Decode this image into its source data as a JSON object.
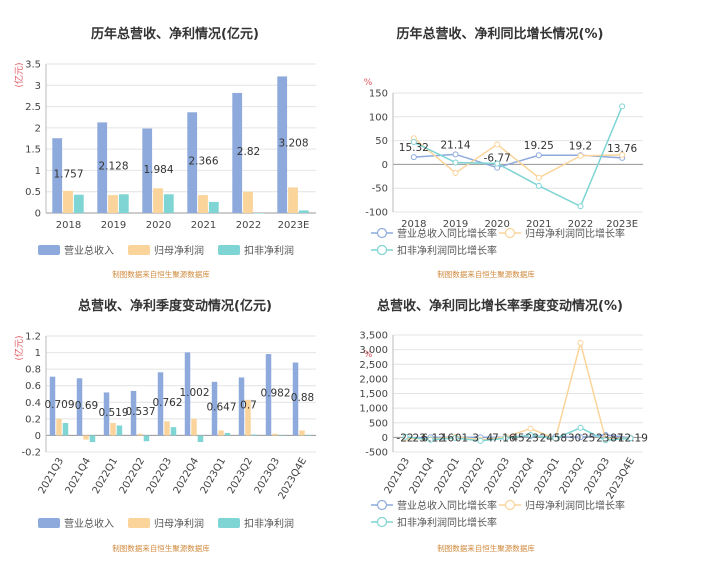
{
  "charts": [
    {
      "type": "bar",
      "title": "历年总营收、净利情况(亿元)",
      "unit_label": "(亿元)",
      "categories": [
        "2018",
        "2019",
        "2020",
        "2021",
        "2022",
        "2023E"
      ],
      "ylim": [
        0,
        3.5
      ],
      "yticks": [
        "0",
        "0.5",
        "1",
        "1.5",
        "2",
        "2.5",
        "3",
        "3.5"
      ],
      "series": [
        {
          "name": "营业总收入",
          "color": "#8eaadc",
          "values": [
            1.757,
            2.128,
            1.984,
            2.366,
            2.82,
            3.208
          ]
        },
        {
          "name": "归母净利润",
          "color": "#fad49a",
          "values": [
            0.52,
            0.42,
            0.58,
            0.42,
            0.5,
            0.6
          ]
        },
        {
          "name": "扣非净利润",
          "color": "#7fd4d4",
          "values": [
            0.43,
            0.44,
            0.44,
            0.26,
            0,
            0.06
          ]
        }
      ],
      "data_labels": [
        "1.757",
        "2.128",
        "1.984",
        "2.366",
        "2.82",
        "3.208"
      ],
      "source": "制图数据来自恒生聚源数据库"
    },
    {
      "type": "line",
      "title": "历年总营收、净利同比增长情况(%)",
      "unit_label": "%",
      "categories": [
        "2018",
        "2019",
        "2020",
        "2021",
        "2022",
        "2023E"
      ],
      "ylim": [
        -100,
        150
      ],
      "yticks": [
        "-100",
        "-50",
        "0",
        "50",
        "100",
        "150"
      ],
      "series": [
        {
          "name": "营业总收入同比增长率",
          "color": "#8eaadc",
          "values": [
            15.32,
            21.14,
            -6.77,
            19.25,
            19.2,
            13.76
          ]
        },
        {
          "name": "归母净利润同比增长率",
          "color": "#fad49a",
          "values": [
            55,
            -18,
            42,
            -28,
            18,
            20
          ]
        },
        {
          "name": "扣非净利润同比增长率",
          "color": "#7fd4d4",
          "values": [
            47,
            4,
            2,
            -45,
            -88,
            122
          ]
        }
      ],
      "data_labels": [
        "15.32",
        "21.14",
        "-6.77",
        "19.25",
        "19.2",
        "13.76"
      ],
      "source": "制图数据来自恒生聚源数据库"
    },
    {
      "type": "bar",
      "title": "总营收、净利季度变动情况(亿元)",
      "unit_label": "(亿元)",
      "categories": [
        "2021Q3",
        "2021Q4",
        "2022Q1",
        "2022Q2",
        "2022Q3",
        "2022Q4",
        "2023Q1",
        "2023Q2",
        "2023Q3",
        "2023Q4E"
      ],
      "ylim": [
        -0.2,
        1.2
      ],
      "yticks": [
        "-0.2",
        "0",
        "0.2",
        "0.4",
        "0.6",
        "0.8",
        "1",
        "1.2"
      ],
      "series": [
        {
          "name": "营业总收入",
          "color": "#8eaadc",
          "values": [
            0.709,
            0.69,
            0.519,
            0.537,
            0.762,
            1.002,
            0.647,
            0.7,
            0.982,
            0.88
          ]
        },
        {
          "name": "归母净利润",
          "color": "#fad49a",
          "values": [
            0.2,
            -0.05,
            0.15,
            0.02,
            0.17,
            0.2,
            0.06,
            0.43,
            0.02,
            0.06
          ]
        },
        {
          "name": "扣非净利润",
          "color": "#7fd4d4",
          "values": [
            0.15,
            -0.08,
            0.12,
            -0.07,
            0.1,
            -0.08,
            0.03,
            0.01,
            0.0,
            0.0
          ]
        }
      ],
      "data_labels": [
        "0.709",
        "0.69",
        "0.519",
        "0.537",
        "0.762",
        "1.002",
        "0.647",
        "0.7",
        "0.982",
        "0.88"
      ],
      "source": "制图数据来自恒生聚源数据库"
    },
    {
      "type": "line",
      "title": "总营收、净利同比增长率季度变动情况(%)",
      "unit_label": "%",
      "categories": [
        "2021Q3",
        "2021Q4",
        "2022Q1",
        "2022Q2",
        "2022Q3",
        "2022Q4",
        "2023Q1",
        "2023Q2",
        "2023Q3",
        "2023Q4E"
      ],
      "ylim": [
        -500,
        3500
      ],
      "yticks": [
        "-500",
        "0",
        "500",
        "1,000",
        "1,500",
        "2,000",
        "2,500",
        "3,000",
        "3,500"
      ],
      "series": [
        {
          "name": "营业总收入同比增长率",
          "color": "#8eaadc",
          "values": [
            -22,
            6.12,
            1,
            3,
            7.16,
            45,
            24,
            5,
            87,
            -12.19
          ]
        },
        {
          "name": "归母净利润同比增长率",
          "color": "#fad49a",
          "values": [
            -30,
            -60,
            16,
            -80,
            10,
            300,
            -50,
            3230,
            -60,
            -20
          ]
        },
        {
          "name": "扣非净利润同比增长率",
          "color": "#7fd4d4",
          "values": [
            23,
            -80,
            -20,
            -120,
            -30,
            80,
            -40,
            330,
            -100,
            -30
          ]
        }
      ],
      "data_labels": [
        "-22",
        "23",
        "6.12",
        "16",
        "01",
        "3",
        "4",
        "7.16",
        "45",
        "23",
        "24",
        "58",
        "30",
        "25",
        "23",
        "87",
        "-12.19"
      ],
      "source": "制图数据来自恒生聚源数据库"
    }
  ],
  "chart_data": [
    {
      "type": "bar",
      "title": "历年总营收、净利情况(亿元)",
      "categories": [
        "2018",
        "2019",
        "2020",
        "2021",
        "2022",
        "2023E"
      ],
      "ylim": [
        0,
        3.5
      ],
      "series": [
        {
          "name": "营业总收入",
          "values": [
            1.757,
            2.128,
            1.984,
            2.366,
            2.82,
            3.208
          ]
        },
        {
          "name": "归母净利润",
          "values": [
            0.52,
            0.42,
            0.58,
            0.42,
            0.5,
            0.6
          ]
        },
        {
          "name": "扣非净利润",
          "values": [
            0.43,
            0.44,
            0.44,
            0.26,
            0,
            0.06
          ]
        }
      ]
    },
    {
      "type": "line",
      "title": "历年总营收、净利同比增长情况(%)",
      "categories": [
        "2018",
        "2019",
        "2020",
        "2021",
        "2022",
        "2023E"
      ],
      "ylim": [
        -100,
        150
      ],
      "series": [
        {
          "name": "营业总收入同比增长率",
          "values": [
            15.32,
            21.14,
            -6.77,
            19.25,
            19.2,
            13.76
          ]
        },
        {
          "name": "归母净利润同比增长率",
          "values": [
            55,
            -18,
            42,
            -28,
            18,
            20
          ]
        },
        {
          "name": "扣非净利润同比增长率",
          "values": [
            47,
            4,
            2,
            -45,
            -88,
            122
          ]
        }
      ]
    },
    {
      "type": "bar",
      "title": "总营收、净利季度变动情况(亿元)",
      "categories": [
        "2021Q3",
        "2021Q4",
        "2022Q1",
        "2022Q2",
        "2022Q3",
        "2022Q4",
        "2023Q1",
        "2023Q2",
        "2023Q3",
        "2023Q4E"
      ],
      "ylim": [
        -0.2,
        1.2
      ],
      "series": [
        {
          "name": "营业总收入",
          "values": [
            0.709,
            0.69,
            0.519,
            0.537,
            0.762,
            1.002,
            0.647,
            0.7,
            0.982,
            0.88
          ]
        },
        {
          "name": "归母净利润",
          "values": [
            0.2,
            -0.05,
            0.15,
            0.02,
            0.17,
            0.2,
            0.06,
            0.43,
            0.02,
            0.06
          ]
        },
        {
          "name": "扣非净利润",
          "values": [
            0.15,
            -0.08,
            0.12,
            -0.07,
            0.1,
            -0.08,
            0.03,
            0.01,
            0.0,
            0.0
          ]
        }
      ]
    },
    {
      "type": "line",
      "title": "总营收、净利同比增长率季度变动情况(%)",
      "categories": [
        "2021Q3",
        "2021Q4",
        "2022Q1",
        "2022Q2",
        "2022Q3",
        "2022Q4",
        "2023Q1",
        "2023Q2",
        "2023Q3",
        "2023Q4E"
      ],
      "ylim": [
        -500,
        3500
      ],
      "series": [
        {
          "name": "营业总收入同比增长率",
          "values": [
            -22,
            6.12,
            1,
            3,
            7.16,
            45,
            24,
            5,
            87,
            -12.19
          ]
        },
        {
          "name": "归母净利润同比增长率",
          "values": [
            -30,
            -60,
            16,
            -80,
            10,
            300,
            -50,
            3230,
            -60,
            -20
          ]
        },
        {
          "name": "扣非净利润同比增长率",
          "values": [
            23,
            -80,
            -20,
            -120,
            -30,
            80,
            -40,
            330,
            -100,
            -30
          ]
        }
      ]
    }
  ]
}
